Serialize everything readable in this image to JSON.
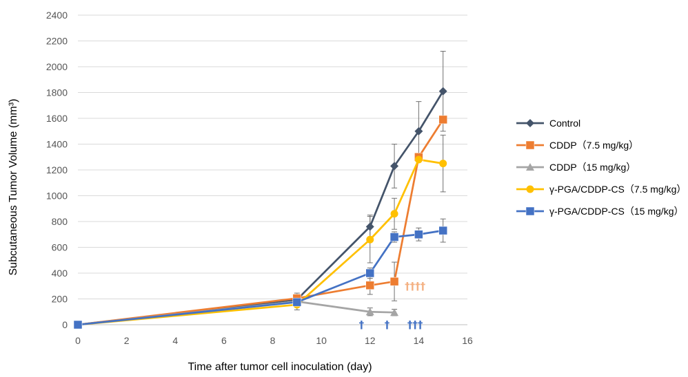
{
  "chart_data": {
    "type": "line",
    "title": "",
    "xlabel": "Time after tumor cell inoculation (day)",
    "ylabel": "Subcutaneous Tumor Volume (mm³)",
    "xlim": [
      0,
      16
    ],
    "ylim": [
      0,
      2400
    ],
    "xticks": [
      0,
      2,
      4,
      6,
      8,
      10,
      12,
      14,
      16
    ],
    "yticks": [
      0,
      200,
      400,
      600,
      800,
      1000,
      1200,
      1400,
      1600,
      1800,
      2000,
      2200,
      2400
    ],
    "grid": "horizontal",
    "legend_position": "right",
    "series": [
      {
        "name": "Control",
        "color": "#44546A",
        "marker": "diamond",
        "x": [
          0,
          9,
          12,
          13,
          14,
          15
        ],
        "y": [
          0,
          195,
          760,
          1230,
          1500,
          1810
        ],
        "err": [
          0,
          40,
          90,
          170,
          230,
          310
        ]
      },
      {
        "name": "CDDP（7.5 mg/kg）",
        "color": "#ED7D31",
        "marker": "square",
        "x": [
          0,
          9,
          12,
          13,
          14,
          15
        ],
        "y": [
          0,
          205,
          305,
          335,
          1300,
          1590
        ],
        "err": [
          0,
          40,
          70,
          150,
          0,
          0
        ]
      },
      {
        "name": "CDDP（15 mg/kg）",
        "color": "#A5A5A5",
        "marker": "triangle",
        "x": [
          0,
          9,
          12,
          13
        ],
        "y": [
          0,
          180,
          100,
          95
        ],
        "err": [
          0,
          40,
          30,
          25
        ]
      },
      {
        "name": "γ-PGA/CDDP-CS（7.5 mg/kg）",
        "color": "#FFC000",
        "marker": "circle",
        "x": [
          0,
          9,
          12,
          13,
          14,
          15
        ],
        "y": [
          0,
          155,
          660,
          860,
          1280,
          1250
        ],
        "err": [
          0,
          40,
          180,
          120,
          0,
          220
        ]
      },
      {
        "name": "γ-PGA/CDDP-CS（15 mg/kg）",
        "color": "#4472C4",
        "marker": "square",
        "x": [
          0,
          9,
          12,
          13,
          14,
          15
        ],
        "y": [
          0,
          175,
          400,
          680,
          700,
          730
        ],
        "err": [
          0,
          30,
          40,
          40,
          50,
          90
        ]
      }
    ],
    "annotations": [
      {
        "text": "††††",
        "color": "#F4B183",
        "x": 13.85,
        "y": 300
      },
      {
        "text": "†",
        "color": "#4472C4",
        "x": 11.65,
        "y": 0
      },
      {
        "text": "†",
        "color": "#4472C4",
        "x": 12.7,
        "y": 0
      },
      {
        "text": "†††",
        "color": "#4472C4",
        "x": 13.85,
        "y": 0
      }
    ]
  }
}
